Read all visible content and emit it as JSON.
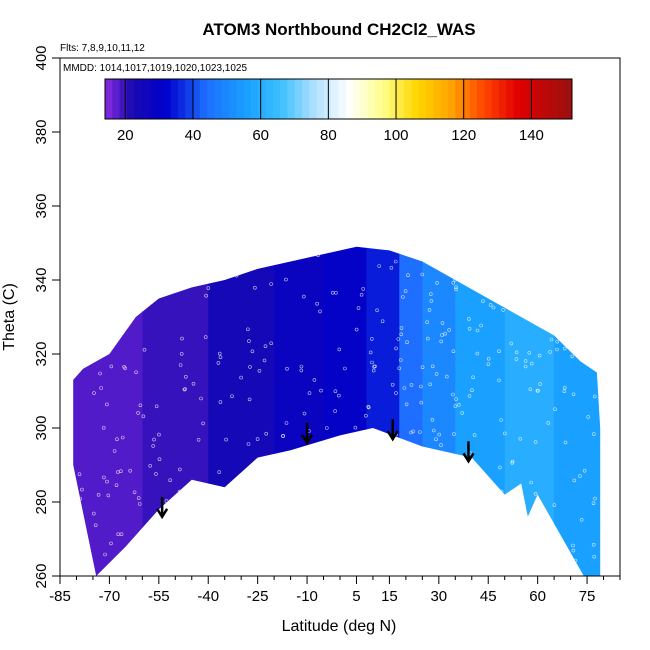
{
  "chart_data": {
    "type": "heatmap",
    "title": "ATOM3 Northbound CH2Cl2_WAS",
    "flights_note": "Flts: 7,8,9,10,11,12",
    "dates_note": "MMDD: 1014,1017,1019,1020,1023,1025",
    "xlabel": "Latitude (deg N)",
    "ylabel": "Theta (C)",
    "xlim": [
      -85,
      85
    ],
    "ylim": [
      260,
      400
    ],
    "x_ticks": [
      -85,
      -70,
      -55,
      -40,
      -25,
      -10,
      5,
      15,
      30,
      45,
      60,
      75
    ],
    "x_minor_ticks": [
      -80,
      -75,
      -65,
      -60,
      -50,
      -45,
      -35,
      -30,
      -20,
      -15,
      -5,
      0,
      10,
      20,
      25,
      35,
      40,
      50,
      55,
      65,
      70,
      80,
      85
    ],
    "y_ticks": [
      260,
      280,
      300,
      320,
      340,
      360,
      380,
      400
    ],
    "colorbar": {
      "range": [
        14,
        152
      ],
      "ticks": [
        20,
        40,
        60,
        80,
        100,
        120,
        140
      ],
      "colors": [
        {
          "v": 14,
          "c": "#8a2be2"
        },
        {
          "v": 22,
          "c": "#1a0ab0"
        },
        {
          "v": 32,
          "c": "#0000cd"
        },
        {
          "v": 44,
          "c": "#1e6fff"
        },
        {
          "v": 56,
          "c": "#1aa0ff"
        },
        {
          "v": 66,
          "c": "#3cc0ff"
        },
        {
          "v": 76,
          "c": "#b0e0ff"
        },
        {
          "v": 86,
          "c": "#ffffff"
        },
        {
          "v": 96,
          "c": "#ffff8c"
        },
        {
          "v": 106,
          "c": "#ffd700"
        },
        {
          "v": 116,
          "c": "#ffa500"
        },
        {
          "v": 126,
          "c": "#ff4500"
        },
        {
          "v": 136,
          "c": "#e00000"
        },
        {
          "v": 152,
          "c": "#9a1010"
        }
      ]
    },
    "upper_boundary": [
      {
        "lat": -81,
        "theta": 313
      },
      {
        "lat": -78,
        "theta": 316
      },
      {
        "lat": -70,
        "theta": 320
      },
      {
        "lat": -62,
        "theta": 330
      },
      {
        "lat": -55,
        "theta": 335
      },
      {
        "lat": -45,
        "theta": 338
      },
      {
        "lat": -35,
        "theta": 340
      },
      {
        "lat": -25,
        "theta": 343
      },
      {
        "lat": -15,
        "theta": 345
      },
      {
        "lat": -5,
        "theta": 347
      },
      {
        "lat": 5,
        "theta": 349
      },
      {
        "lat": 15,
        "theta": 348
      },
      {
        "lat": 25,
        "theta": 345
      },
      {
        "lat": 35,
        "theta": 340
      },
      {
        "lat": 45,
        "theta": 335
      },
      {
        "lat": 55,
        "theta": 330
      },
      {
        "lat": 65,
        "theta": 325
      },
      {
        "lat": 73,
        "theta": 318
      },
      {
        "lat": 78,
        "theta": 315
      },
      {
        "lat": 79,
        "theta": 300
      },
      {
        "lat": 79,
        "theta": 260
      }
    ],
    "lower_boundary": [
      {
        "lat": 74,
        "theta": 260
      },
      {
        "lat": 60,
        "theta": 282
      },
      {
        "lat": 57,
        "theta": 276
      },
      {
        "lat": 55,
        "theta": 285
      },
      {
        "lat": 50,
        "theta": 282
      },
      {
        "lat": 40,
        "theta": 292
      },
      {
        "lat": 25,
        "theta": 295
      },
      {
        "lat": 10,
        "theta": 300
      },
      {
        "lat": 0,
        "theta": 298
      },
      {
        "lat": -15,
        "theta": 294
      },
      {
        "lat": -25,
        "theta": 292
      },
      {
        "lat": -35,
        "theta": 284
      },
      {
        "lat": -45,
        "theta": 286
      },
      {
        "lat": -55,
        "theta": 278
      },
      {
        "lat": -65,
        "theta": 268
      },
      {
        "lat": -74,
        "theta": 260
      },
      {
        "lat": -81,
        "theta": 290
      }
    ],
    "field": [
      {
        "lat_max": -60,
        "value": 18
      },
      {
        "lat_max": -40,
        "value": 20
      },
      {
        "lat_max": -20,
        "value": 24
      },
      {
        "lat_max": -5,
        "value": 28
      },
      {
        "lat_max": 8,
        "value": 30
      },
      {
        "lat_max": 18,
        "value": 35
      },
      {
        "lat_max": 25,
        "value": 44
      },
      {
        "lat_max": 35,
        "value": 50
      },
      {
        "lat_max": 50,
        "value": 56
      },
      {
        "lat_max": 65,
        "value": 60
      },
      {
        "lat_max": 90,
        "value": 56
      }
    ],
    "arrows": [
      {
        "lat": -54,
        "theta": 276
      },
      {
        "lat": -10,
        "theta": 296
      },
      {
        "lat": 16,
        "theta": 297
      },
      {
        "lat": 39,
        "theta": 291
      }
    ]
  }
}
